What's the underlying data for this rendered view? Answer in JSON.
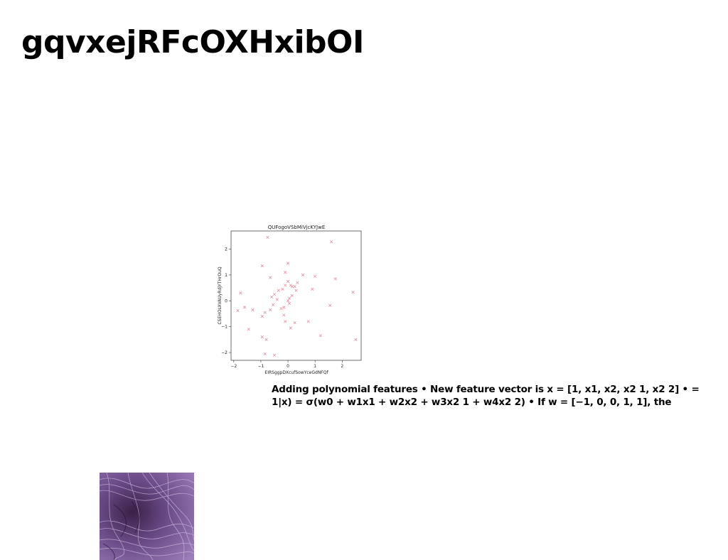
{
  "page": {
    "title": "gqvxejRFcOXHxibOI",
    "caption": "Adding polynomial features • New feature vector is x = [1, x1, x2, x2 1, x2 2] • = 1|x) = σ(w0 + w1x1 + w2x2 + w3x2 1 + w4x2 2) • If w = [−1, 0, 0, 1, 1], the"
  },
  "chart_data": {
    "type": "scatter",
    "title": "QUFogoVSbMiVjcKYJwE",
    "xlabel": "EIRSggpDXcufSowYceGdNFQf",
    "ylabel": "CSEHOsXVAUyRdjYTHrOuQ",
    "xlim": [
      -2.1,
      2.7
    ],
    "ylim": [
      -2.3,
      2.7
    ],
    "xticks": [
      -2,
      -1,
      0,
      1,
      2
    ],
    "yticks": [
      -2,
      -1,
      0,
      1,
      2
    ],
    "marker": "x",
    "color": "#e0909c",
    "grid": false,
    "series": [
      {
        "x": [
          -0.75,
          1.6,
          -0.95,
          0.0,
          -0.1,
          0.55,
          1.0,
          1.75,
          -0.65,
          -1.75,
          2.4,
          -1.85,
          -1.6,
          -1.3,
          -0.6,
          -0.5,
          -0.35,
          -0.2,
          -0.1,
          0.0,
          0.1,
          0.15,
          0.25,
          0.3,
          0.35,
          0.05,
          -0.55,
          -0.4,
          -0.65,
          -0.85,
          -0.25,
          -0.15,
          0.05,
          0.0,
          1.55,
          0.9,
          -0.95,
          -0.15,
          -0.1,
          0.75,
          0.25,
          0.1,
          1.2,
          -0.8,
          -1.45,
          -0.95,
          -0.85,
          -0.5,
          2.5,
          0.15
        ],
        "y": [
          2.45,
          2.28,
          1.35,
          1.45,
          1.1,
          1.0,
          0.95,
          0.85,
          0.9,
          0.3,
          0.33,
          -0.38,
          -0.25,
          -0.35,
          0.15,
          0.25,
          0.4,
          0.45,
          0.6,
          0.75,
          0.6,
          0.2,
          0.55,
          0.4,
          0.7,
          0.1,
          -0.15,
          0.05,
          -0.35,
          -0.45,
          -0.3,
          -0.25,
          -0.1,
          0.0,
          -0.18,
          0.45,
          -0.6,
          -0.55,
          -0.8,
          -0.8,
          -0.85,
          -1.05,
          -1.35,
          -1.5,
          -1.1,
          -1.4,
          -2.05,
          -2.1,
          -1.5,
          0.55
        ]
      }
    ]
  }
}
